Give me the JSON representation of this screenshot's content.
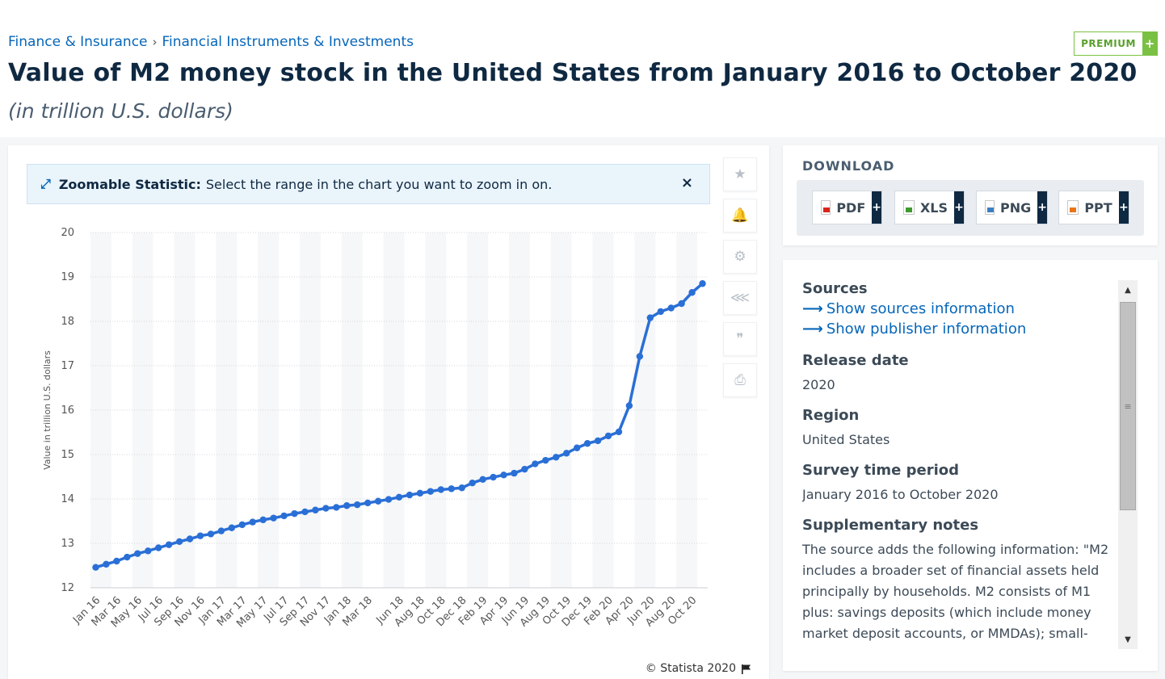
{
  "breadcrumb": [
    "Finance & Insurance",
    "Financial Instruments & Investments"
  ],
  "title": "Value of M2 money stock in the United States from January 2016 to October 2020",
  "subtitle": "(in trillion U.S. dollars)",
  "premium_label": "PREMIUM",
  "zoom_banner": {
    "bold": "Zoomable Statistic:",
    "text": "Select the range in the chart you want to zoom in on."
  },
  "toolbar": [
    {
      "name": "star-icon",
      "glyph": "★"
    },
    {
      "name": "bell-icon",
      "glyph": "🔔"
    },
    {
      "name": "gear-icon",
      "glyph": "⚙"
    },
    {
      "name": "share-icon",
      "glyph": "⋘"
    },
    {
      "name": "quote-icon",
      "glyph": "❞"
    },
    {
      "name": "print-icon",
      "glyph": "⎙"
    }
  ],
  "copyright": "© Statista 2020",
  "download": {
    "title": "DOWNLOAD",
    "buttons": [
      {
        "label": "PDF",
        "color": "#d9261c"
      },
      {
        "label": "XLS",
        "color": "#3e9a2f"
      },
      {
        "label": "PNG",
        "color": "#3c7fc1"
      },
      {
        "label": "PPT",
        "color": "#e8751a"
      }
    ]
  },
  "info": {
    "sources_label": "Sources",
    "show_sources": "Show sources information",
    "show_publisher": "Show publisher information",
    "release_label": "Release date",
    "release_value": "2020",
    "region_label": "Region",
    "region_value": "United States",
    "survey_label": "Survey time period",
    "survey_value": "January 2016 to October 2020",
    "notes_label": "Supplementary notes",
    "notes_value": "The source adds the following information: \"M2 includes a broader set of financial assets held principally by households. M2 consists of M1 plus: savings deposits (which include money market deposit accounts, or MMDAs); small-"
  },
  "chart_data": {
    "type": "line",
    "ylabel": "Value in trillion U.S. dollars",
    "xlabel": "",
    "ylim": [
      12,
      20
    ],
    "yticks": [
      12,
      13,
      14,
      15,
      16,
      17,
      18,
      19,
      20
    ],
    "grid": true,
    "color": "#2a6fd6",
    "x_tick_labels": [
      "Jan 16",
      "Mar 16",
      "May 16",
      "Jul 16",
      "Sep 16",
      "Nov 16",
      "Jan 17",
      "Mar 17",
      "May 17",
      "Jul 17",
      "Sep 17",
      "Nov 17",
      "Jan 18",
      "Mar 18",
      "Jun 18",
      "Aug 18",
      "Oct 18",
      "Dec 18",
      "Feb 19",
      "Apr 19",
      "Jun 19",
      "Aug 19",
      "Oct 19",
      "Dec 19",
      "Feb 20",
      "Apr 20",
      "Jun 20",
      "Aug 20",
      "Oct 20"
    ],
    "series": [
      {
        "values": [
          12.46,
          12.53,
          12.6,
          12.69,
          12.77,
          12.83,
          12.9,
          12.97,
          13.04,
          13.1,
          13.17,
          13.21,
          13.28,
          13.35,
          13.42,
          13.48,
          13.53,
          13.57,
          13.62,
          13.67,
          13.71,
          13.75,
          13.79,
          13.81,
          13.85,
          13.87,
          13.91,
          13.95,
          13.99,
          14.04,
          14.09,
          14.13,
          14.17,
          14.21,
          14.23,
          14.25,
          14.36,
          14.44,
          14.49,
          14.54,
          14.58,
          14.67,
          14.79,
          14.87,
          14.94,
          15.03,
          15.15,
          15.25,
          15.31,
          15.42,
          15.51,
          16.1,
          17.21,
          18.08,
          18.22,
          18.3,
          18.4,
          18.65,
          18.85
        ]
      }
    ]
  }
}
